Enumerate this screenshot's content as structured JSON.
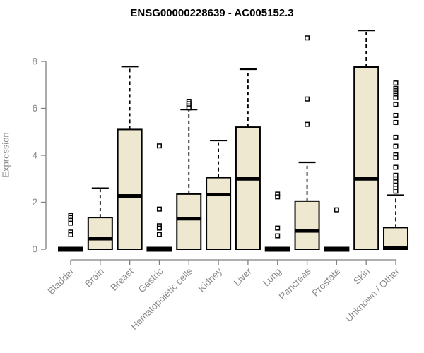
{
  "title": "ENSG00000228639 - AC005152.3",
  "chart_data": {
    "type": "boxplot",
    "title": "ENSG00000228639 - AC005152.3",
    "xlabel": "",
    "ylabel": "Expression",
    "ylim": [
      0,
      9.5
    ],
    "yticks": [
      0,
      2,
      4,
      6,
      8
    ],
    "grid": false,
    "legend": "none",
    "categories": [
      "Bladder",
      "Brain",
      "Breast",
      "Gastric",
      "Hematopoietic cells",
      "Kidney",
      "Liver",
      "Lung",
      "Pancreas",
      "Prostate",
      "Skin",
      "Unknown / Other"
    ],
    "series": [
      {
        "category": "Bladder",
        "min": 0,
        "q1": 0,
        "median": 0,
        "q3": 0,
        "whisker_high": 0,
        "outliers": [
          1.44,
          1.35,
          1.23,
          1.11,
          0.73,
          0.62
        ]
      },
      {
        "category": "Brain",
        "min": 0,
        "q1": 0,
        "median": 0.45,
        "q3": 1.35,
        "whisker_high": 2.6,
        "outliers": []
      },
      {
        "category": "Breast",
        "min": 0,
        "q1": 0,
        "median": 2.27,
        "q3": 5.1,
        "whisker_high": 7.78,
        "outliers": []
      },
      {
        "category": "Gastric",
        "min": 0,
        "q1": 0,
        "median": 0,
        "q3": 0,
        "whisker_high": 0,
        "outliers": [
          4.4,
          1.71,
          1.0,
          0.9,
          0.63
        ]
      },
      {
        "category": "Hematopoietic cells",
        "min": 0,
        "q1": 0,
        "median": 1.3,
        "q3": 2.35,
        "whisker_high": 5.95,
        "outliers": [
          6.3,
          6.2,
          6.1,
          6.02
        ]
      },
      {
        "category": "Kidney",
        "min": 0,
        "q1": 0,
        "median": 2.33,
        "q3": 3.05,
        "whisker_high": 4.63,
        "outliers": []
      },
      {
        "category": "Liver",
        "min": 0,
        "q1": 0,
        "median": 3.0,
        "q3": 5.2,
        "whisker_high": 7.67,
        "outliers": []
      },
      {
        "category": "Lung",
        "min": 0,
        "q1": 0,
        "median": 0,
        "q3": 0,
        "whisker_high": 0,
        "outliers": [
          2.35,
          2.23,
          0.9,
          0.57
        ]
      },
      {
        "category": "Pancreas",
        "min": 0,
        "q1": 0,
        "median": 0.78,
        "q3": 2.05,
        "whisker_high": 3.7,
        "outliers": [
          9.0,
          6.4,
          5.32
        ]
      },
      {
        "category": "Prostate",
        "min": 0,
        "q1": 0,
        "median": 0,
        "q3": 0,
        "whisker_high": 0,
        "outliers": [
          1.68
        ]
      },
      {
        "category": "Skin",
        "min": 0,
        "q1": 0,
        "median": 3.0,
        "q3": 7.76,
        "whisker_high": 9.32,
        "outliers": []
      },
      {
        "category": "Unknown / Other",
        "min": 0,
        "q1": 0,
        "median": 0.06,
        "q3": 0.92,
        "whisker_high": 2.3,
        "outliers": [
          7.08,
          6.85,
          6.75,
          6.65,
          6.55,
          6.45,
          6.17,
          5.7,
          5.4,
          4.77,
          4.39,
          4.02,
          3.9,
          3.49,
          3.15,
          3.0,
          2.87,
          2.73,
          2.6,
          2.47
        ]
      }
    ],
    "colors": {
      "box_fill": "#EEE8D0",
      "box_stroke": "#000000",
      "median": "#000000",
      "axis_line": "#808080",
      "axis_text": "#8a8a8a",
      "title_text": "#000000",
      "outlier_fill": "#ffffff",
      "outlier_stroke": "#000000"
    }
  }
}
